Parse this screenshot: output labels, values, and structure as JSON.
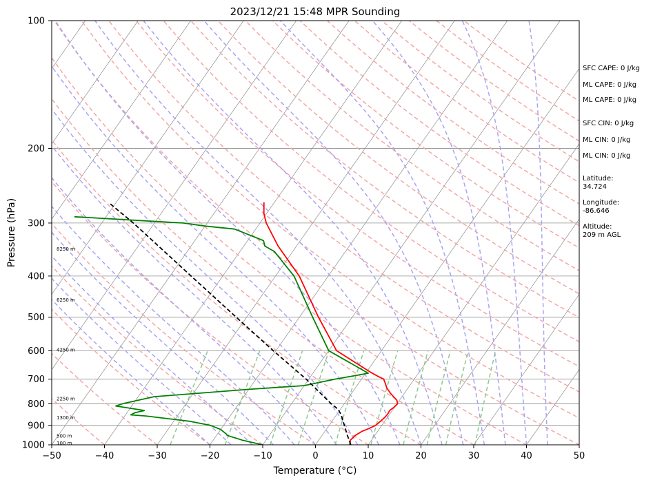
{
  "chart_data": {
    "type": "skew-t",
    "title": "2023/12/21 15:48 MPR Sounding",
    "xlabel": "Temperature (°C)",
    "ylabel": "Pressure (hPa)",
    "xlim": [
      -50,
      50
    ],
    "ylim": [
      1000,
      100
    ],
    "x_ticks": [
      -50,
      -40,
      -30,
      -20,
      -10,
      0,
      10,
      20,
      30,
      40,
      50
    ],
    "y_ticks": [
      100,
      200,
      300,
      400,
      500,
      600,
      700,
      800,
      900,
      1000
    ],
    "series": [
      {
        "role": "temperature",
        "color": "#ff0000",
        "points": [
          [
            1000,
            6.5
          ],
          [
            975,
            6.0
          ],
          [
            950,
            6.3
          ],
          [
            930,
            7.0
          ],
          [
            915,
            8.0
          ],
          [
            900,
            8.8
          ],
          [
            880,
            9.2
          ],
          [
            860,
            9.5
          ],
          [
            845,
            9.6
          ],
          [
            830,
            9.5
          ],
          [
            815,
            9.9
          ],
          [
            800,
            10.1
          ],
          [
            785,
            9.5
          ],
          [
            770,
            8.4
          ],
          [
            755,
            7.3
          ],
          [
            735,
            6.0
          ],
          [
            715,
            5.0
          ],
          [
            700,
            4.2
          ],
          [
            690,
            2.8
          ],
          [
            676,
            1.0
          ],
          [
            600,
            -8.5
          ],
          [
            500,
            -16.4
          ],
          [
            400,
            -25.5
          ],
          [
            340,
            -33.5
          ],
          [
            300,
            -38.8
          ],
          [
            285,
            -40.5
          ],
          [
            268,
            -42.0
          ]
        ]
      },
      {
        "role": "dewpoint",
        "color": "#008000",
        "points": [
          [
            1000,
            -10.0
          ],
          [
            975,
            -14.5
          ],
          [
            950,
            -18.0
          ],
          [
            945,
            -18.2
          ],
          [
            920,
            -20.0
          ],
          [
            900,
            -22.5
          ],
          [
            880,
            -27.0
          ],
          [
            855,
            -36.0
          ],
          [
            850,
            -39.0
          ],
          [
            840,
            -38.5
          ],
          [
            830,
            -37.0
          ],
          [
            820,
            -40.0
          ],
          [
            810,
            -43.0
          ],
          [
            800,
            -42.0
          ],
          [
            770,
            -37.0
          ],
          [
            740,
            -20.0
          ],
          [
            725,
            -10.0
          ],
          [
            700,
            -5.0
          ],
          [
            688,
            -2.0
          ],
          [
            678,
            0.5
          ],
          [
            600,
            -10.0
          ],
          [
            500,
            -17.5
          ],
          [
            400,
            -26.5
          ],
          [
            350,
            -33.5
          ],
          [
            340,
            -36.0
          ],
          [
            330,
            -37.0
          ],
          [
            310,
            -44.0
          ],
          [
            305,
            -50.0
          ],
          [
            300,
            -54.5
          ],
          [
            296,
            -63.0
          ],
          [
            290,
            -76.0
          ]
        ]
      },
      {
        "role": "parcel",
        "color": "#000000",
        "style": "dashed",
        "points": [
          [
            1000,
            6.7
          ],
          [
            950,
            4.8
          ],
          [
            900,
            2.9
          ],
          [
            850,
            0.9
          ],
          [
            825,
            -0.4
          ],
          [
            800,
            -2.5
          ],
          [
            700,
            -10.5
          ],
          [
            600,
            -20.5
          ],
          [
            500,
            -32.0
          ],
          [
            400,
            -46.0
          ],
          [
            300,
            -64.0
          ],
          [
            270,
            -71.0
          ]
        ]
      }
    ],
    "height_labels": [
      {
        "p": 345,
        "label": "8250 m"
      },
      {
        "p": 455,
        "label": "6250 m"
      },
      {
        "p": 597,
        "label": "4250 m"
      },
      {
        "p": 778,
        "label": "2250 m"
      },
      {
        "p": 863,
        "label": "1300 m"
      },
      {
        "p": 952,
        "label": "500 m"
      },
      {
        "p": 990,
        "label": "100 m"
      }
    ],
    "reference_lines": {
      "dry_adiabats_color": "#f4a6a6",
      "moist_adiabats_color": "#a9a4f0",
      "mixing_ratio_color": "#8dc98d",
      "isotherm_color": "#8c8c8c",
      "isobar_color": "#8c8c8c"
    }
  },
  "side_panel": {
    "sfc_cape": "SFC CAPE: 0 J/kg",
    "ml_cape_1": "ML CAPE: 0 J/kg",
    "ml_cape_2": "ML CAPE: 0 J/kg",
    "sfc_cin": "SFC CIN: 0 J/kg",
    "ml_cin_1": "ML CIN: 0 J/kg",
    "ml_cin_2": "ML CIN: 0 J/kg",
    "latitude_label": "Latitude:",
    "latitude_value": "34.724",
    "longitude_label": "Longitude:",
    "longitude_value": "-86.646",
    "altitude_label": "Altitude:",
    "altitude_value": "209 m AGL"
  }
}
